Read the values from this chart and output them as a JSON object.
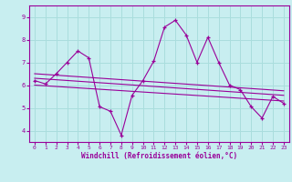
{
  "title": "",
  "xlabel": "Windchill (Refroidissement éolien,°C)",
  "ylabel": "",
  "background_color": "#c8eef0",
  "grid_color": "#aadddd",
  "line_color": "#990099",
  "xlim": [
    -0.5,
    23.5
  ],
  "ylim": [
    3.5,
    9.5
  ],
  "yticks": [
    4,
    5,
    6,
    7,
    8,
    9
  ],
  "xticks": [
    0,
    1,
    2,
    3,
    4,
    5,
    6,
    7,
    8,
    9,
    10,
    11,
    12,
    13,
    14,
    15,
    16,
    17,
    18,
    19,
    20,
    21,
    22,
    23
  ],
  "series_main": {
    "x": [
      0,
      1,
      2,
      3,
      4,
      5,
      6,
      7,
      8,
      9,
      10,
      11,
      12,
      13,
      14,
      15,
      16,
      17,
      18,
      19,
      20,
      21,
      22,
      23
    ],
    "y": [
      6.2,
      6.05,
      6.5,
      7.0,
      7.5,
      7.2,
      5.05,
      4.85,
      3.8,
      5.55,
      6.2,
      7.05,
      8.55,
      8.85,
      8.2,
      7.0,
      8.1,
      7.0,
      6.0,
      5.8,
      5.05,
      4.55,
      5.5,
      5.2
    ]
  },
  "trend_lines": [
    {
      "x": [
        0,
        23
      ],
      "y": [
        6.5,
        5.75
      ]
    },
    {
      "x": [
        0,
        23
      ],
      "y": [
        6.3,
        5.55
      ]
    },
    {
      "x": [
        0,
        23
      ],
      "y": [
        6.0,
        5.3
      ]
    }
  ],
  "xlabel_fontsize": 5.5,
  "tick_fontsize": 5.0
}
